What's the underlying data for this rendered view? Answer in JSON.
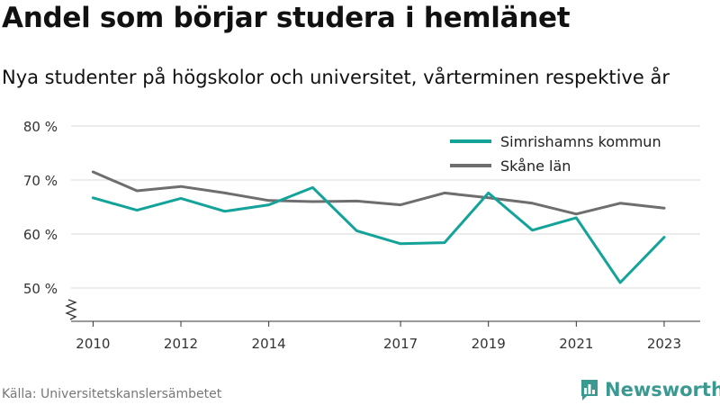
{
  "title": "Andel som börjar studera i hemlänet",
  "subtitle": "Nya studenter på högskolor och universitet, vårterminen respektive år",
  "source": "Källa: Universitetskanslersämbetet",
  "brand": {
    "name": "Newsworthy",
    "color": "#3a9a92"
  },
  "chart_data": {
    "type": "line",
    "x": [
      2010,
      2011,
      2012,
      2013,
      2014,
      2015,
      2016,
      2017,
      2018,
      2019,
      2020,
      2021,
      2022,
      2023
    ],
    "x_tick_labels": [
      "2010",
      "2012",
      "2014",
      "2017",
      "2019",
      "2021",
      "2023"
    ],
    "x_tick_values": [
      2010,
      2012,
      2014,
      2017,
      2019,
      2021,
      2023
    ],
    "y_tick_labels": [
      "80 %",
      "70 %",
      "60 %",
      "50 %"
    ],
    "y_tick_values": [
      80,
      70,
      60,
      50
    ],
    "ylim": [
      48,
      82
    ],
    "grid": true,
    "legend_position": "top-right",
    "broken_axis": true,
    "series": [
      {
        "name": "Simrishamns kommun",
        "color": "#13a399",
        "values": [
          66.7,
          64.4,
          66.6,
          64.2,
          65.4,
          68.6,
          60.6,
          58.2,
          58.4,
          67.6,
          60.7,
          63.0,
          51.0,
          59.4
        ]
      },
      {
        "name": "Skåne län",
        "color": "#6f6d70",
        "values": [
          71.5,
          68.0,
          68.8,
          67.6,
          66.2,
          66.0,
          66.1,
          65.4,
          67.6,
          66.7,
          65.7,
          63.7,
          65.7,
          64.8
        ]
      }
    ]
  }
}
